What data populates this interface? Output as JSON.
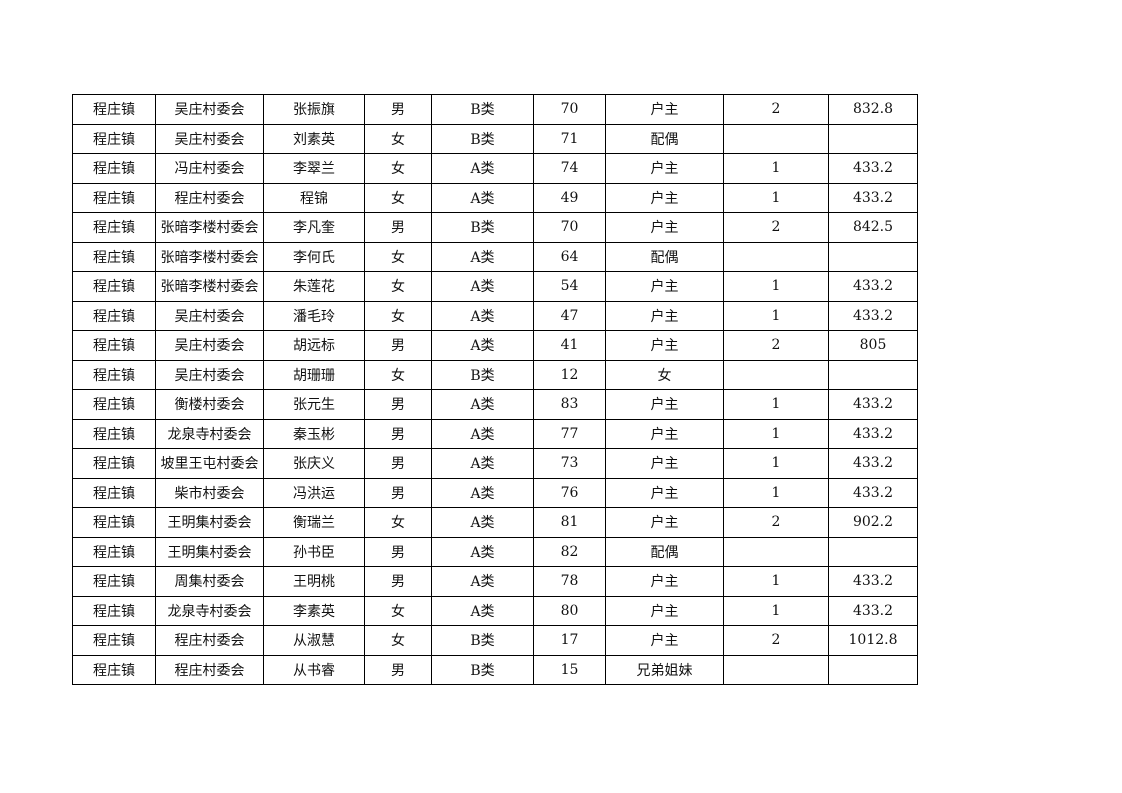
{
  "table": {
    "rows": [
      [
        "程庄镇",
        "吴庄村委会",
        "张振旗",
        "男",
        "B类",
        "70",
        "户主",
        "2",
        "832.8"
      ],
      [
        "程庄镇",
        "吴庄村委会",
        "刘素英",
        "女",
        "B类",
        "71",
        "配偶",
        "",
        ""
      ],
      [
        "程庄镇",
        "冯庄村委会",
        "李翠兰",
        "女",
        "A类",
        "74",
        "户主",
        "1",
        "433.2"
      ],
      [
        "程庄镇",
        "程庄村委会",
        "程锦",
        "女",
        "A类",
        "49",
        "户主",
        "1",
        "433.2"
      ],
      [
        "程庄镇",
        "张暗李楼村委会",
        "李凡奎",
        "男",
        "B类",
        "70",
        "户主",
        "2",
        "842.5"
      ],
      [
        "程庄镇",
        "张暗李楼村委会",
        "李何氏",
        "女",
        "A类",
        "64",
        "配偶",
        "",
        ""
      ],
      [
        "程庄镇",
        "张暗李楼村委会",
        "朱莲花",
        "女",
        "A类",
        "54",
        "户主",
        "1",
        "433.2"
      ],
      [
        "程庄镇",
        "吴庄村委会",
        "潘毛玲",
        "女",
        "A类",
        "47",
        "户主",
        "1",
        "433.2"
      ],
      [
        "程庄镇",
        "吴庄村委会",
        "胡远标",
        "男",
        "A类",
        "41",
        "户主",
        "2",
        "805"
      ],
      [
        "程庄镇",
        "吴庄村委会",
        "胡珊珊",
        "女",
        "B类",
        "12",
        "女",
        "",
        ""
      ],
      [
        "程庄镇",
        "衡楼村委会",
        "张元生",
        "男",
        "A类",
        "83",
        "户主",
        "1",
        "433.2"
      ],
      [
        "程庄镇",
        "龙泉寺村委会",
        "秦玉彬",
        "男",
        "A类",
        "77",
        "户主",
        "1",
        "433.2"
      ],
      [
        "程庄镇",
        "坡里王屯村委会",
        "张庆义",
        "男",
        "A类",
        "73",
        "户主",
        "1",
        "433.2"
      ],
      [
        "程庄镇",
        "柴市村委会",
        "冯洪运",
        "男",
        "A类",
        "76",
        "户主",
        "1",
        "433.2"
      ],
      [
        "程庄镇",
        "王明集村委会",
        "衡瑞兰",
        "女",
        "A类",
        "81",
        "户主",
        "2",
        "902.2"
      ],
      [
        "程庄镇",
        "王明集村委会",
        "孙书臣",
        "男",
        "A类",
        "82",
        "配偶",
        "",
        ""
      ],
      [
        "程庄镇",
        "周集村委会",
        "王明桃",
        "男",
        "A类",
        "78",
        "户主",
        "1",
        "433.2"
      ],
      [
        "程庄镇",
        "龙泉寺村委会",
        "李素英",
        "女",
        "A类",
        "80",
        "户主",
        "1",
        "433.2"
      ],
      [
        "程庄镇",
        "程庄村委会",
        "从淑慧",
        "女",
        "B类",
        "17",
        "户主",
        "2",
        "1012.8"
      ],
      [
        "程庄镇",
        "程庄村委会",
        "从书睿",
        "男",
        "B类",
        "15",
        "兄弟姐妹",
        "",
        ""
      ]
    ]
  }
}
